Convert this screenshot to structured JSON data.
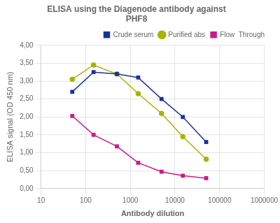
{
  "chart_data": {
    "type": "line",
    "title": "ELISA using the Diagenode antibody against\nPHF8",
    "xlabel": "Antibody dilution",
    "ylabel": "ELISA signal (OD 450 nm)",
    "log": "x",
    "xlim": [
      10,
      1000000
    ],
    "xticks": [
      10,
      100,
      1000,
      10000,
      100000,
      1000000
    ],
    "ylim": [
      0.0,
      4.0
    ],
    "yticks": [
      {
        "value": 0.0,
        "label": "0,00"
      },
      {
        "value": 0.5,
        "label": "0,50"
      },
      {
        "value": 1.0,
        "label": "1,00"
      },
      {
        "value": 1.5,
        "label": "1,50"
      },
      {
        "value": 2.0,
        "label": "2,00"
      },
      {
        "value": 2.5,
        "label": "2,50"
      },
      {
        "value": 3.0,
        "label": "3,00"
      },
      {
        "value": 3.5,
        "label": "3,50"
      },
      {
        "value": 4.0,
        "label": "4,00"
      }
    ],
    "grid": true,
    "legend": "upper right",
    "x": [
      50,
      150,
      500,
      1500,
      5000,
      15000,
      50000
    ],
    "series": [
      {
        "name": "Crude serum",
        "color": "#1a3399",
        "marker": "square",
        "values": [
          2.7,
          3.25,
          3.2,
          3.1,
          2.5,
          2.0,
          1.3
        ]
      },
      {
        "name": "Purified abs",
        "color": "#a8b400",
        "marker": "circle",
        "values": [
          3.05,
          3.45,
          3.2,
          2.65,
          2.1,
          1.45,
          0.82
        ]
      },
      {
        "name": "Flow  Through",
        "color": "#cc1a8a",
        "marker": "square",
        "values": [
          2.03,
          1.5,
          1.18,
          0.72,
          0.47,
          0.36,
          0.29
        ]
      }
    ]
  }
}
